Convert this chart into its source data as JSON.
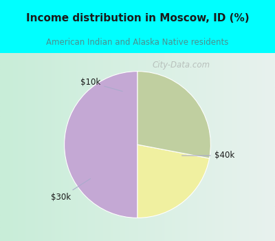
{
  "title": "Income distribution in Moscow, ID (%)",
  "subtitle": "American Indian and Alaska Native residents",
  "slices": [
    {
      "label": "$40k",
      "value": 50,
      "color": "#C4A8D4"
    },
    {
      "label": "$10k",
      "value": 22,
      "color": "#F0F0A0"
    },
    {
      "label": "$30k",
      "value": 28,
      "color": "#C0CFA0"
    }
  ],
  "bg_color": "#00FFFF",
  "chart_bg_left": "#C8EDD8",
  "chart_bg_right": "#E8F0F0",
  "title_color": "#1a1a1a",
  "subtitle_color": "#4A9090",
  "label_color": "#1a1a1a",
  "line_color": "#AAAACC",
  "watermark": "City-Data.com",
  "start_angle": 90,
  "figsize": [
    4.0,
    3.5
  ],
  "dpi": 100
}
